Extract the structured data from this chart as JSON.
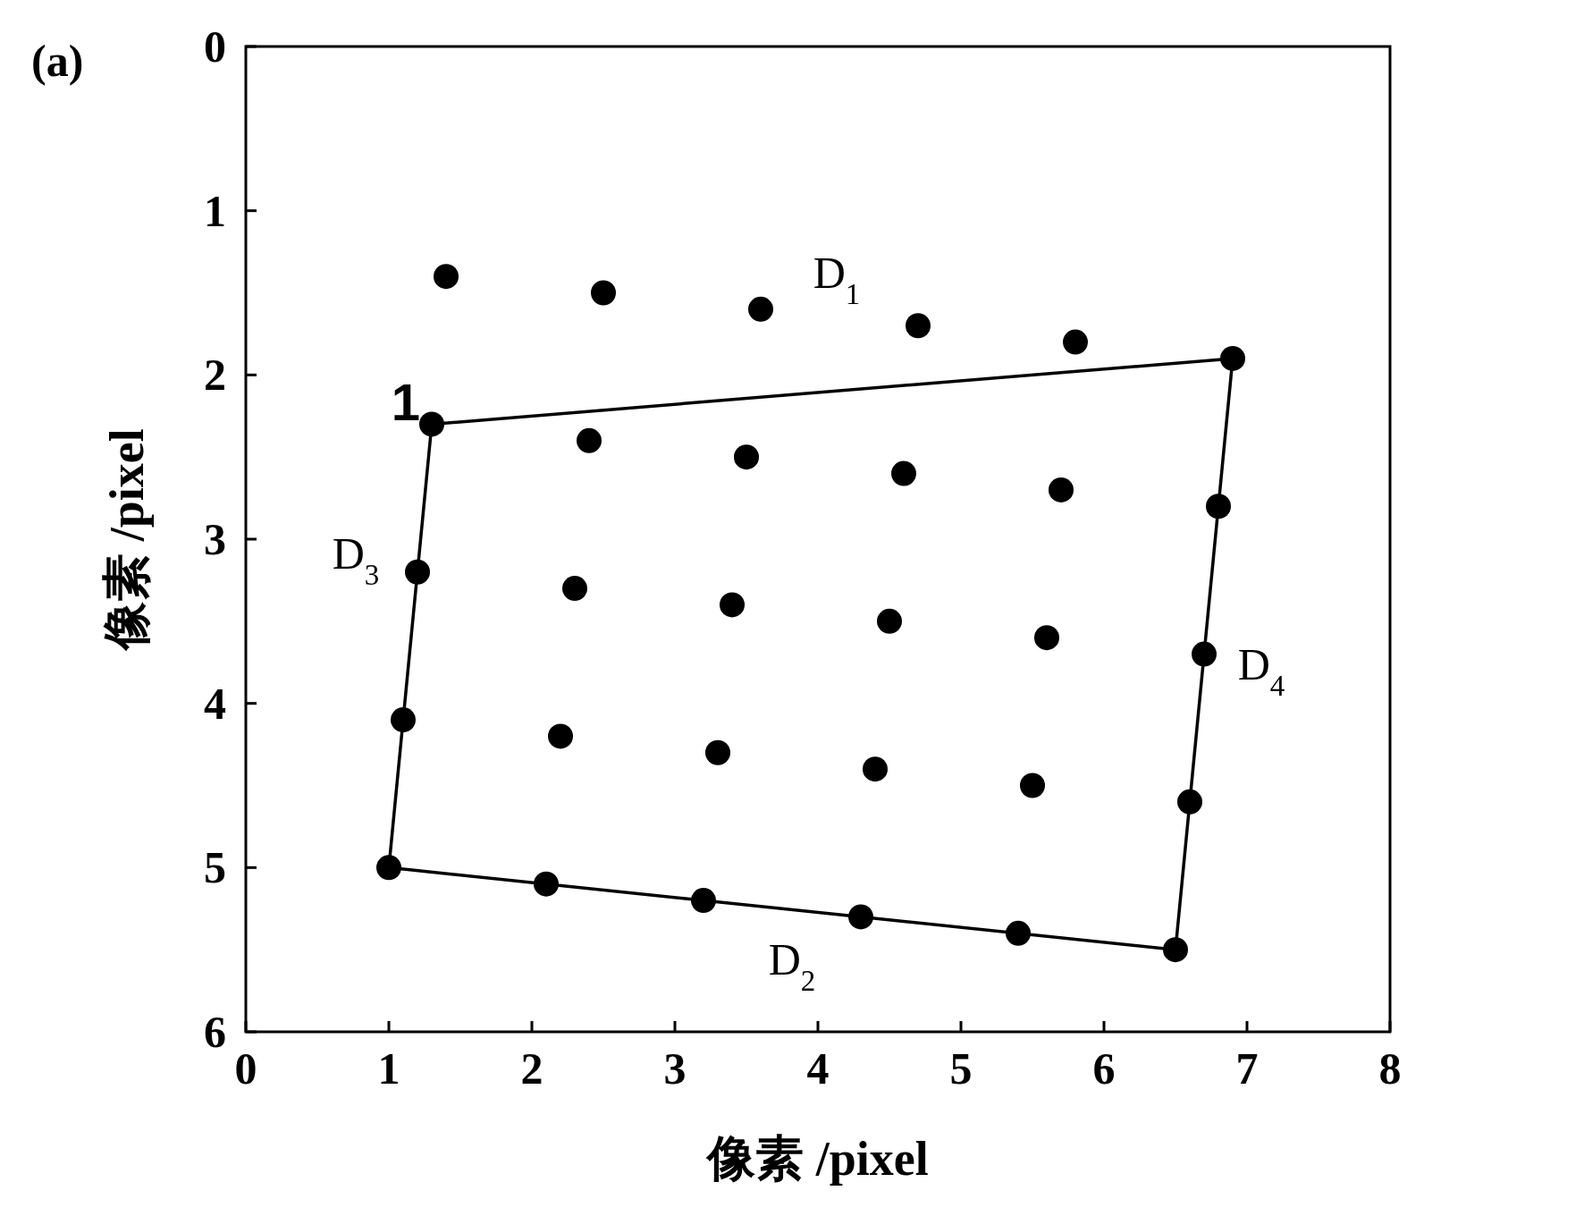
{
  "chart_data": {
    "type": "scatter",
    "xlabel": "像素 /pixel",
    "ylabel": "像素 /pixel",
    "xlim": [
      0,
      8
    ],
    "ylim": [
      6,
      0
    ],
    "xticks": [
      0,
      1,
      2,
      3,
      4,
      5,
      6,
      7,
      8
    ],
    "yticks": [
      0,
      1,
      2,
      3,
      4,
      5,
      6
    ],
    "grid": false,
    "series": [
      {
        "marker": "circle",
        "color": "#000000",
        "x": [
          1.4,
          2.5,
          3.6,
          4.7,
          5.8,
          6.9,
          1.3,
          2.4,
          3.5,
          4.6,
          5.7,
          6.8,
          1.2,
          2.3,
          3.4,
          4.5,
          5.6,
          6.7,
          1.1,
          2.2,
          3.3,
          4.4,
          5.5,
          6.6,
          1.0,
          2.1,
          3.2,
          4.3,
          5.4,
          6.5
        ],
        "values": [
          1.4,
          1.5,
          1.6,
          1.7,
          1.8,
          1.9,
          2.3,
          2.4,
          2.5,
          2.6,
          2.7,
          2.8,
          3.2,
          3.3,
          3.4,
          3.5,
          3.6,
          3.7,
          4.1,
          4.2,
          4.3,
          4.4,
          4.5,
          4.6,
          5.0,
          5.1,
          5.2,
          5.3,
          5.4,
          5.5
        ]
      },
      {
        "type": "line",
        "marker": "none",
        "line_style": "solid",
        "color": "#000000",
        "x": [
          1.3,
          6.9
        ],
        "values": [
          2.3,
          1.9
        ]
      },
      {
        "type": "line",
        "marker": "none",
        "line_style": "solid",
        "color": "#000000",
        "x": [
          6.5,
          6.9
        ],
        "values": [
          5.5,
          1.9
        ]
      },
      {
        "type": "line",
        "marker": "none",
        "line_style": "solid",
        "color": "#000000",
        "x": [
          1.0,
          6.5
        ],
        "values": [
          5.0,
          5.5
        ]
      },
      {
        "type": "line",
        "marker": "none",
        "line_style": "solid",
        "color": "#000000",
        "x": [
          1.0,
          1.3
        ],
        "values": [
          5.0,
          2.3
        ]
      }
    ],
    "annotations": [
      "(a)",
      "D$_{1}$",
      "D$_{2}$",
      "D$_{3}$",
      "D$_{4}$",
      "1"
    ]
  }
}
